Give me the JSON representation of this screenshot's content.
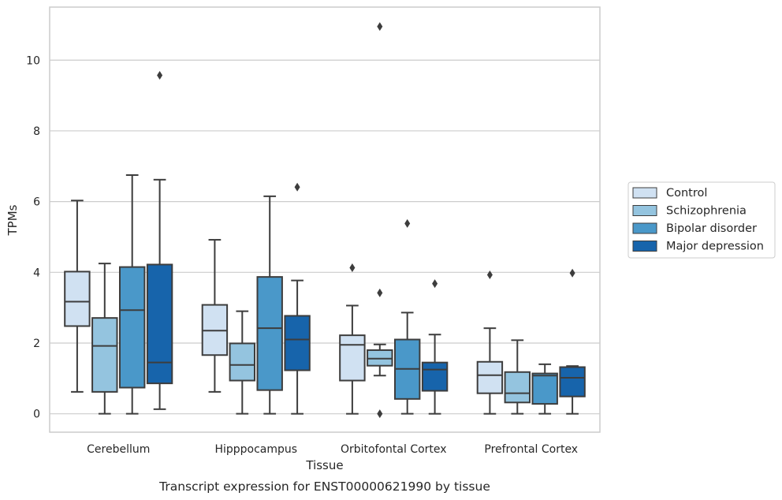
{
  "chart_data": {
    "type": "box",
    "title": "",
    "caption": "Transcript expression for ENST00000621990 by tissue",
    "xlabel": "Tissue",
    "ylabel": "TPMs",
    "ylim": [
      -0.52,
      11.5
    ],
    "yticks": [
      0,
      2,
      4,
      6,
      8,
      10
    ],
    "grid": "horizontal",
    "legend_position": "right",
    "categories": [
      "Cerebellum",
      "Hipppocampus",
      "Orbitofontal Cortex",
      "Prefrontal Cortex"
    ],
    "series": [
      {
        "name": "Control",
        "color": "#d0e1f2",
        "boxes": [
          {
            "whisker_low": 0.62,
            "q1": 2.48,
            "median": 3.17,
            "q3": 4.02,
            "whisker_high": 6.03,
            "outliers": []
          },
          {
            "whisker_low": 0.62,
            "q1": 1.66,
            "median": 2.35,
            "q3": 3.08,
            "whisker_high": 4.92,
            "outliers": []
          },
          {
            "whisker_low": 0.0,
            "q1": 0.94,
            "median": 1.95,
            "q3": 2.22,
            "whisker_high": 3.06,
            "outliers": [
              4.13
            ]
          },
          {
            "whisker_low": 0.0,
            "q1": 0.58,
            "median": 1.09,
            "q3": 1.47,
            "whisker_high": 2.42,
            "outliers": [
              3.93
            ]
          }
        ]
      },
      {
        "name": "Schizophrenia",
        "color": "#94c4df",
        "boxes": [
          {
            "whisker_low": 0.0,
            "q1": 0.62,
            "median": 1.92,
            "q3": 2.71,
            "whisker_high": 4.25,
            "outliers": []
          },
          {
            "whisker_low": 0.0,
            "q1": 0.94,
            "median": 1.38,
            "q3": 1.99,
            "whisker_high": 2.9,
            "outliers": []
          },
          {
            "whisker_low": 1.08,
            "q1": 1.36,
            "median": 1.56,
            "q3": 1.8,
            "whisker_high": 1.96,
            "outliers": [
              3.42,
              10.95,
              0.0
            ]
          },
          {
            "whisker_low": 0.0,
            "q1": 0.32,
            "median": 0.58,
            "q3": 1.18,
            "whisker_high": 2.08,
            "outliers": []
          }
        ]
      },
      {
        "name": "Bipolar disorder",
        "color": "#4a98c9",
        "boxes": [
          {
            "whisker_low": 0.0,
            "q1": 0.74,
            "median": 2.93,
            "q3": 4.15,
            "whisker_high": 6.75,
            "outliers": []
          },
          {
            "whisker_low": 0.0,
            "q1": 0.67,
            "median": 2.42,
            "q3": 3.87,
            "whisker_high": 6.15,
            "outliers": []
          },
          {
            "whisker_low": 0.0,
            "q1": 0.42,
            "median": 1.27,
            "q3": 2.1,
            "whisker_high": 2.86,
            "outliers": [
              5.38
            ]
          },
          {
            "whisker_low": 0.0,
            "q1": 0.28,
            "median": 1.08,
            "q3": 1.14,
            "whisker_high": 1.4,
            "outliers": []
          }
        ]
      },
      {
        "name": "Major depression",
        "color": "#1764ab",
        "boxes": [
          {
            "whisker_low": 0.13,
            "q1": 0.86,
            "median": 1.45,
            "q3": 4.22,
            "whisker_high": 6.62,
            "outliers": [
              9.57
            ]
          },
          {
            "whisker_low": 0.0,
            "q1": 1.23,
            "median": 2.1,
            "q3": 2.77,
            "whisker_high": 3.77,
            "outliers": [
              6.41
            ]
          },
          {
            "whisker_low": 0.0,
            "q1": 0.65,
            "median": 1.25,
            "q3": 1.45,
            "whisker_high": 2.24,
            "outliers": [
              3.68
            ]
          },
          {
            "whisker_low": 0.0,
            "q1": 0.49,
            "median": 1.02,
            "q3": 1.32,
            "whisker_high": 1.35,
            "outliers": [
              3.98
            ]
          }
        ]
      }
    ]
  }
}
